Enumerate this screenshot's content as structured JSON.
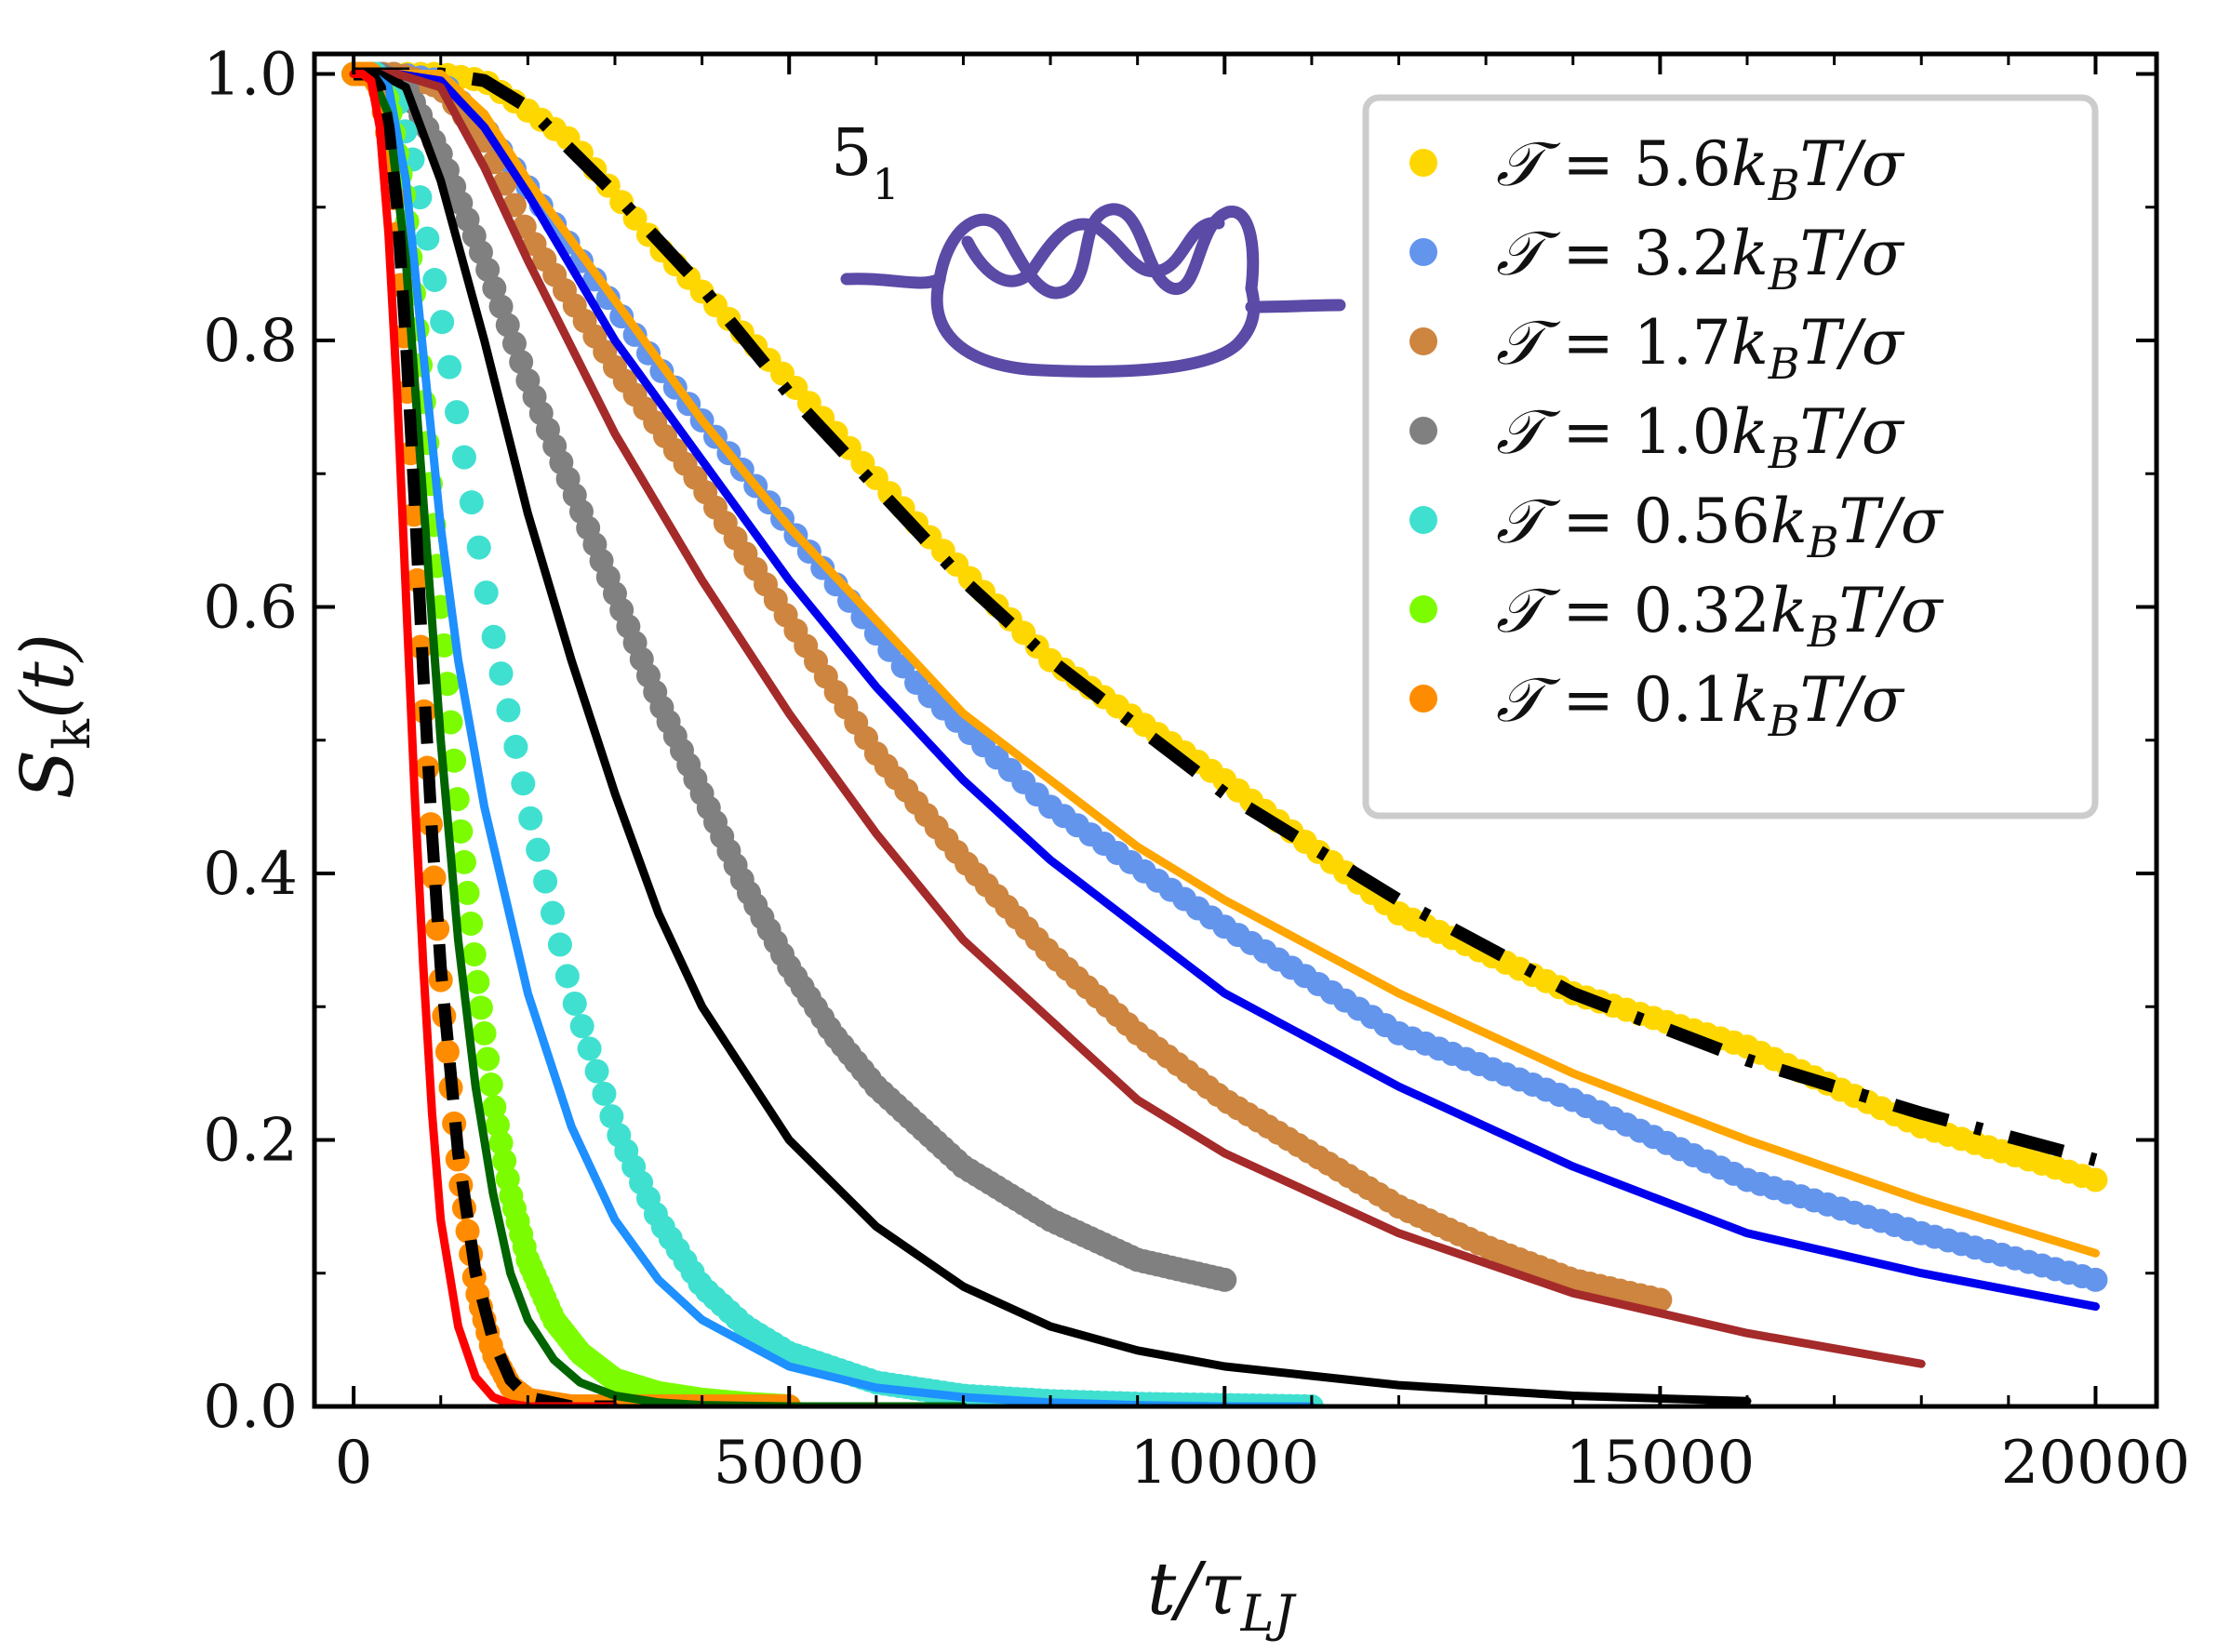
{
  "chart_data": {
    "type": "scatter",
    "title": "",
    "xlabel": "t/τ_LJ",
    "ylabel": "S_k(t)",
    "xlim": [
      -450,
      20700
    ],
    "ylim": [
      0,
      1.015
    ],
    "x_ticks": [
      0,
      5000,
      10000,
      15000,
      20000
    ],
    "x_tick_labels": [
      "0",
      "5000",
      "10000",
      "15000",
      "20000"
    ],
    "y_ticks": [
      0.0,
      0.2,
      0.4,
      0.6,
      0.8,
      1.0
    ],
    "y_tick_labels": [
      "0.0",
      "0.2",
      "0.4",
      "0.6",
      "0.8",
      "1.0"
    ],
    "grid": false,
    "legend_position": "top-right",
    "annotation": {
      "text": "5",
      "subscript": "1",
      "knot_color": "#5b4aa6"
    },
    "series": [
      {
        "name": "T = 5.6k_B T/σ",
        "legend": {
          "sym": "𝒯",
          "value": "5.6",
          "unit": "k",
          "sub": "B",
          "rest": "T/σ"
        },
        "style": "markers",
        "color": "#ffd700",
        "x": [
          0,
          500,
          1000,
          1500,
          2500,
          3500,
          5000,
          6500,
          8000,
          10000,
          12000,
          14000,
          16000,
          18000,
          20000
        ],
        "y": [
          1.0,
          1.0,
          1.0,
          0.995,
          0.95,
          0.87,
          0.77,
          0.66,
          0.56,
          0.47,
          0.37,
          0.31,
          0.27,
          0.21,
          0.17
        ]
      },
      {
        "name": "T = 3.2k_B T/σ",
        "legend": {
          "sym": "𝒯",
          "value": "3.2",
          "unit": "k",
          "sub": "B",
          "rest": "T/σ"
        },
        "style": "markers",
        "color": "#6495ed",
        "x": [
          0,
          500,
          1000,
          1500,
          2500,
          3500,
          5000,
          6500,
          8000,
          10000,
          12000,
          14000,
          16000,
          18000,
          20000
        ],
        "y": [
          1.0,
          1.0,
          0.995,
          0.96,
          0.87,
          0.78,
          0.66,
          0.54,
          0.45,
          0.36,
          0.28,
          0.23,
          0.17,
          0.13,
          0.095
        ]
      },
      {
        "name": "T = 1.7k_B T/σ",
        "legend": {
          "sym": "𝒯",
          "value": "1.7",
          "unit": "k",
          "sub": "B",
          "rest": "T/σ"
        },
        "style": "markers",
        "color": "#cd853f",
        "x": [
          0,
          500,
          1000,
          1500,
          2000,
          3000,
          4000,
          5000,
          6000,
          7000,
          8000,
          9000,
          10000,
          11000,
          12000,
          13000,
          14000,
          15000
        ],
        "y": [
          1.0,
          1.0,
          0.99,
          0.95,
          0.88,
          0.78,
          0.69,
          0.59,
          0.49,
          0.41,
          0.34,
          0.28,
          0.23,
          0.19,
          0.15,
          0.12,
          0.095,
          0.08
        ]
      },
      {
        "name": "T = 1.0k_B T/σ",
        "legend": {
          "sym": "𝒯",
          "value": "1.0",
          "unit": "k",
          "sub": "B",
          "rest": "T/σ"
        },
        "style": "markers",
        "color": "#808080",
        "x": [
          0,
          300,
          600,
          1000,
          1500,
          2000,
          2500,
          3000,
          3500,
          4000,
          4500,
          5000,
          5500,
          6000,
          7000,
          8000,
          9000,
          10000
        ],
        "y": [
          1.0,
          1.0,
          0.99,
          0.94,
          0.86,
          0.77,
          0.69,
          0.61,
          0.53,
          0.46,
          0.39,
          0.33,
          0.28,
          0.24,
          0.18,
          0.14,
          0.11,
          0.095
        ]
      },
      {
        "name": "T = 0.56k_B T/σ",
        "legend": {
          "sym": "𝒯",
          "value": "0.56",
          "unit": "k",
          "sub": "B",
          "rest": "T/σ"
        },
        "style": "markers",
        "color": "#40e0d0",
        "x": [
          0,
          300,
          500,
          700,
          1000,
          1300,
          1600,
          2000,
          2500,
          3000,
          3500,
          4000,
          4500,
          5000,
          6000,
          7000,
          8000,
          9000,
          10000,
          11000
        ],
        "y": [
          1.0,
          1.0,
          0.98,
          0.93,
          0.82,
          0.7,
          0.58,
          0.45,
          0.31,
          0.21,
          0.14,
          0.09,
          0.06,
          0.04,
          0.018,
          0.008,
          0.004,
          0.002,
          0.001,
          0.0
        ]
      },
      {
        "name": "T = 0.32k_B T/σ",
        "legend": {
          "sym": "𝒯",
          "value": "0.32",
          "unit": "k",
          "sub": "B",
          "rest": "T/σ"
        },
        "style": "markers",
        "color": "#7cfc00",
        "x": [
          0,
          200,
          400,
          600,
          800,
          1000,
          1200,
          1400,
          1600,
          1800,
          2000,
          2300,
          2600,
          3000,
          3500,
          4000,
          4500,
          5000
        ],
        "y": [
          1.0,
          1.0,
          0.98,
          0.9,
          0.76,
          0.6,
          0.45,
          0.33,
          0.23,
          0.16,
          0.11,
          0.065,
          0.04,
          0.02,
          0.01,
          0.005,
          0.002,
          0.0
        ]
      },
      {
        "name": "T = 0.1k_B T/σ",
        "legend": {
          "sym": "𝒯",
          "value": "0.1",
          "unit": "k",
          "sub": "B",
          "rest": "T/σ"
        },
        "style": "markers",
        "color": "#ff8c00",
        "x": [
          0,
          100,
          200,
          300,
          400,
          500,
          600,
          700,
          800,
          900,
          1000,
          1200,
          1400,
          1600,
          1800,
          2000,
          2500,
          3000,
          3500,
          4000,
          5000
        ],
        "y": [
          1.0,
          1.0,
          1.0,
          0.99,
          0.95,
          0.88,
          0.78,
          0.66,
          0.53,
          0.42,
          0.32,
          0.18,
          0.09,
          0.04,
          0.015,
          0.005,
          0.0,
          0.0,
          0.0,
          0.0,
          0.0
        ]
      },
      {
        "name": "fit 5.6 (dash-dot)",
        "style": "dashdot",
        "color": "#000000",
        "x": [
          0,
          500,
          1000,
          1500,
          2000,
          3000,
          4000,
          5000,
          6000,
          7000,
          8000,
          9000,
          10000,
          12000,
          14000,
          16000,
          18000,
          20000
        ],
        "y": [
          1.0,
          1.0,
          1.0,
          0.995,
          0.975,
          0.91,
          0.84,
          0.76,
          0.69,
          0.62,
          0.56,
          0.51,
          0.46,
          0.38,
          0.31,
          0.26,
          0.22,
          0.185
        ]
      },
      {
        "name": "orange line",
        "style": "line",
        "color": "#ffa500",
        "x": [
          0,
          500,
          1000,
          1500,
          2000,
          3000,
          4000,
          5000,
          6000,
          7000,
          8000,
          9000,
          10000,
          12000,
          14000,
          16000,
          18000,
          20000
        ],
        "y": [
          1.0,
          1.0,
          1.0,
          0.97,
          0.92,
          0.83,
          0.74,
          0.66,
          0.59,
          0.52,
          0.47,
          0.42,
          0.38,
          0.31,
          0.25,
          0.2,
          0.155,
          0.115
        ]
      },
      {
        "name": "blue line",
        "style": "line",
        "color": "#0000ee",
        "x": [
          0,
          500,
          1000,
          1500,
          2000,
          3000,
          4000,
          5000,
          6000,
          7000,
          8000,
          9000,
          10000,
          12000,
          14000,
          16000,
          18000,
          20000
        ],
        "y": [
          1.0,
          1.0,
          0.995,
          0.96,
          0.91,
          0.8,
          0.71,
          0.62,
          0.54,
          0.47,
          0.41,
          0.36,
          0.31,
          0.24,
          0.18,
          0.13,
          0.1,
          0.075
        ]
      },
      {
        "name": "brown line",
        "style": "line",
        "color": "#a52a2a",
        "x": [
          0,
          500,
          1000,
          1500,
          2000,
          3000,
          4000,
          5000,
          6000,
          7000,
          8000,
          9000,
          10000,
          12000,
          14000,
          16000,
          18000
        ],
        "y": [
          1.0,
          1.0,
          0.99,
          0.93,
          0.86,
          0.73,
          0.62,
          0.52,
          0.43,
          0.35,
          0.29,
          0.23,
          0.19,
          0.13,
          0.085,
          0.055,
          0.032
        ]
      },
      {
        "name": "black line",
        "style": "line",
        "color": "#000000",
        "x": [
          0,
          300,
          600,
          1000,
          1500,
          2000,
          2500,
          3000,
          3500,
          4000,
          5000,
          6000,
          7000,
          8000,
          9000,
          10000,
          12000,
          14000,
          16000
        ],
        "y": [
          1.0,
          1.0,
          0.99,
          0.92,
          0.8,
          0.67,
          0.56,
          0.46,
          0.37,
          0.3,
          0.2,
          0.135,
          0.09,
          0.06,
          0.042,
          0.03,
          0.016,
          0.008,
          0.004
        ]
      },
      {
        "name": "dodger blue line",
        "style": "line",
        "color": "#1e90ff",
        "x": [
          0,
          200,
          400,
          600,
          800,
          1000,
          1200,
          1500,
          2000,
          2500,
          3000,
          3500,
          4000,
          5000,
          6000,
          7000,
          8000,
          9000,
          10000,
          11000
        ],
        "y": [
          1.0,
          1.0,
          0.99,
          0.92,
          0.79,
          0.66,
          0.56,
          0.45,
          0.31,
          0.21,
          0.14,
          0.095,
          0.065,
          0.03,
          0.014,
          0.007,
          0.003,
          0.001,
          0.0,
          0.0
        ]
      },
      {
        "name": "dark green line",
        "style": "line",
        "color": "#006400",
        "x": [
          0,
          200,
          400,
          600,
          800,
          1000,
          1200,
          1400,
          1600,
          1800,
          2000,
          2300,
          2600,
          3000,
          3500,
          4000,
          5000,
          6000,
          7000
        ],
        "y": [
          1.0,
          1.0,
          0.97,
          0.86,
          0.68,
          0.5,
          0.35,
          0.24,
          0.16,
          0.1,
          0.065,
          0.035,
          0.018,
          0.008,
          0.003,
          0.001,
          0.0,
          0.0,
          0.0
        ]
      },
      {
        "name": "fit 0.1 (dashed)",
        "style": "dashed",
        "color": "#000000",
        "x": [
          0,
          100,
          200,
          300,
          400,
          500,
          600,
          700,
          800,
          900,
          1000,
          1200,
          1400,
          1600,
          1800,
          2000,
          2500,
          3000
        ],
        "y": [
          1.0,
          1.0,
          1.0,
          0.99,
          0.96,
          0.9,
          0.8,
          0.68,
          0.55,
          0.43,
          0.33,
          0.19,
          0.1,
          0.05,
          0.02,
          0.007,
          0.0,
          0.0
        ]
      },
      {
        "name": "red line",
        "style": "line",
        "color": "#ff0000",
        "x": [
          0,
          100,
          200,
          300,
          400,
          500,
          600,
          700,
          800,
          900,
          1000,
          1200,
          1400,
          1600,
          1800,
          2000,
          2200,
          2500,
          3000
        ],
        "y": [
          1.0,
          1.0,
          0.995,
          0.96,
          0.88,
          0.76,
          0.61,
          0.46,
          0.33,
          0.22,
          0.14,
          0.06,
          0.022,
          0.007,
          0.002,
          0.0,
          0.0,
          0.0,
          0.0
        ]
      }
    ]
  }
}
